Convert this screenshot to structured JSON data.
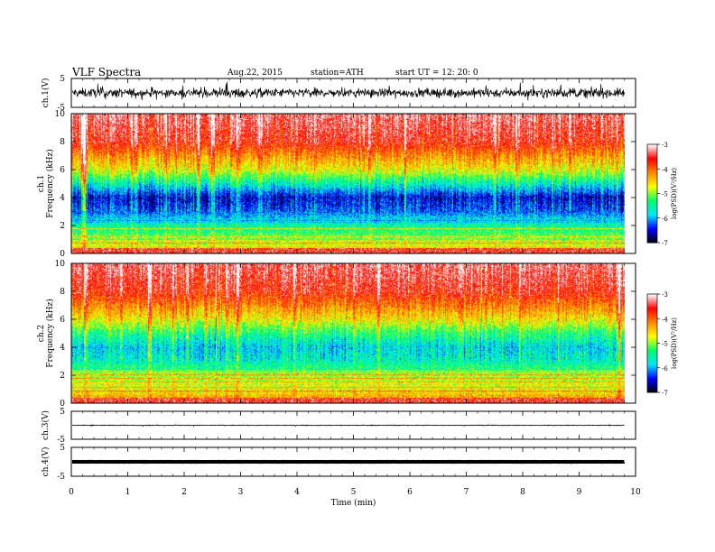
{
  "header": {
    "title": "VLF  Spectra",
    "date": "Aug.22, 2015",
    "station": "station=ATH",
    "start": "start  UT  =    12: 20: 0"
  },
  "colormap": {
    "stops": [
      "#000000",
      "#0000ff",
      "#00e5ff",
      "#00ff66",
      "#ffff00",
      "#ff8800",
      "#ff0000",
      "#ffffff"
    ],
    "background_red": "#ee1111"
  },
  "chart_data": [
    {
      "type": "line",
      "name": "ch1",
      "ylabel": "ch.1(V)",
      "ylim": [
        -5,
        5
      ],
      "yticks": [
        "5",
        "-5"
      ],
      "x_range_min": [
        0,
        9.8
      ],
      "baseline": 0,
      "noise_amplitude": 2.5,
      "grid": false
    },
    {
      "type": "heatmap",
      "name": "ch1-spectrogram",
      "ylabel": "ch.1\nFrequency (kHz)",
      "ylim": [
        0,
        10
      ],
      "yticks": [
        "0",
        "2",
        "4",
        "6",
        "8",
        "10"
      ],
      "x_range_min": [
        0,
        9.8
      ],
      "zlabel": "log(PSD)(V²/Hz)",
      "zlim": [
        -7,
        -3
      ],
      "colorbar_ticks": [
        "-3",
        "-4",
        "-5",
        "-6",
        "-7"
      ],
      "frequency_profile_logPSD": [
        [
          0.0,
          -4.0
        ],
        [
          0.5,
          -4.7
        ],
        [
          1.0,
          -5.0
        ],
        [
          2.0,
          -5.5
        ],
        [
          3.0,
          -6.2
        ],
        [
          4.0,
          -6.5
        ],
        [
          5.0,
          -5.6
        ],
        [
          6.0,
          -4.7
        ],
        [
          7.0,
          -4.2
        ],
        [
          8.0,
          -3.6
        ],
        [
          10.0,
          -3.3
        ]
      ]
    },
    {
      "type": "heatmap",
      "name": "ch2-spectrogram",
      "ylabel": "ch.2\nFrequency (kHz)",
      "ylim": [
        0,
        10
      ],
      "yticks": [
        "0",
        "2",
        "4",
        "6",
        "8",
        "10"
      ],
      "x_range_min": [
        0,
        9.8
      ],
      "zlabel": "log(PSD)(V²/Hz)",
      "zlim": [
        -7,
        -3
      ],
      "colorbar_ticks": [
        "-3",
        "-4",
        "-5",
        "-6",
        "-7"
      ],
      "frequency_profile_logPSD": [
        [
          0.0,
          -3.8
        ],
        [
          0.5,
          -4.4
        ],
        [
          1.0,
          -4.6
        ],
        [
          2.0,
          -5.0
        ],
        [
          3.0,
          -5.6
        ],
        [
          4.0,
          -5.8
        ],
        [
          5.0,
          -5.3
        ],
        [
          6.0,
          -4.6
        ],
        [
          7.0,
          -4.1
        ],
        [
          8.0,
          -3.6
        ],
        [
          10.0,
          -3.3
        ]
      ]
    },
    {
      "type": "line",
      "name": "ch3",
      "ylabel": "ch.3(V)",
      "ylim": [
        -5,
        5
      ],
      "yticks": [
        "5",
        "-5"
      ],
      "x_range_min": [
        0,
        9.8
      ],
      "baseline": 0,
      "noise_amplitude": 0.2,
      "grid": false
    },
    {
      "type": "line",
      "name": "ch4",
      "ylabel": "ch.4(V)",
      "ylim": [
        -5,
        5
      ],
      "yticks": [
        "5",
        "-5"
      ],
      "x_range_min": [
        0,
        9.8
      ],
      "baseline": 0,
      "noise_amplitude": 0.05,
      "grid": false
    }
  ],
  "xaxis": {
    "xlabel": "Time  (min)",
    "xlim": [
      0,
      10
    ],
    "ticks": [
      "0",
      "1",
      "2",
      "3",
      "4",
      "5",
      "6",
      "7",
      "8",
      "9",
      "10"
    ]
  }
}
